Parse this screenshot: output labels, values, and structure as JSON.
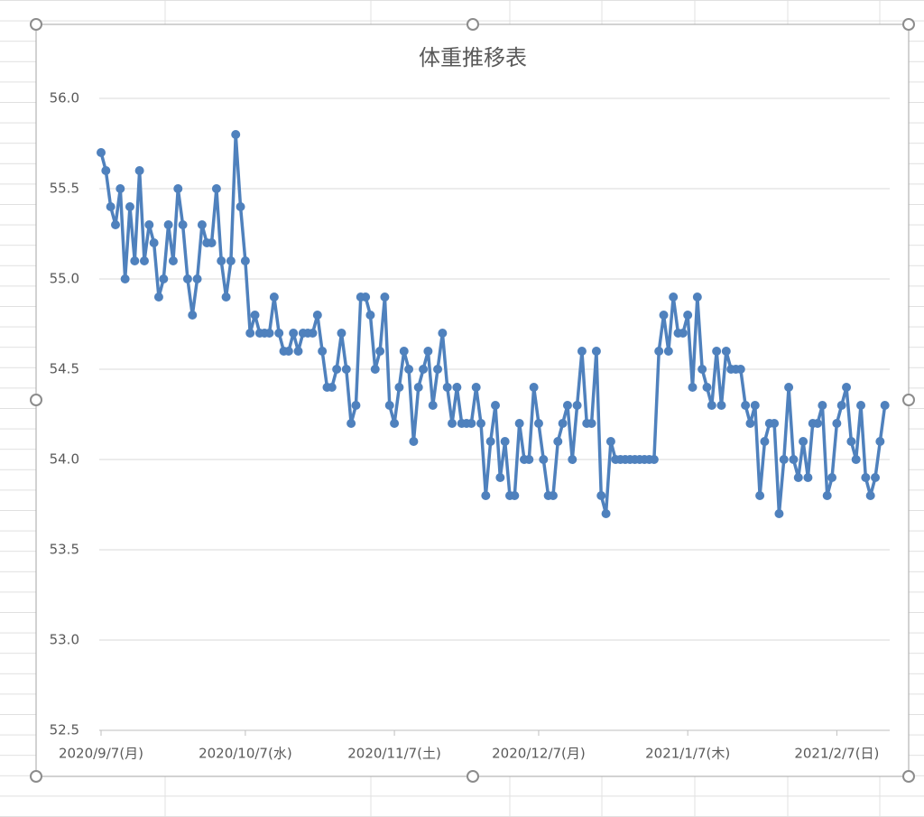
{
  "chart_data": {
    "type": "line",
    "title": "体重推移表",
    "x": [
      "2020/9/7",
      "2020/9/8",
      "2020/9/9",
      "2020/9/10",
      "2020/9/11",
      "2020/9/12",
      "2020/9/13",
      "2020/9/14",
      "2020/9/15",
      "2020/9/16",
      "2020/9/17",
      "2020/9/18",
      "2020/9/19",
      "2020/9/20",
      "2020/9/21",
      "2020/9/22",
      "2020/9/23",
      "2020/9/24",
      "2020/9/25",
      "2020/9/26",
      "2020/9/27",
      "2020/9/28",
      "2020/9/29",
      "2020/9/30",
      "2020/10/1",
      "2020/10/2",
      "2020/10/3",
      "2020/10/4",
      "2020/10/5",
      "2020/10/6",
      "2020/10/7",
      "2020/10/8",
      "2020/10/9",
      "2020/10/10",
      "2020/10/11",
      "2020/10/12",
      "2020/10/13",
      "2020/10/14",
      "2020/10/15",
      "2020/10/16",
      "2020/10/17",
      "2020/10/18",
      "2020/10/19",
      "2020/10/20",
      "2020/10/21",
      "2020/10/22",
      "2020/10/23",
      "2020/10/24",
      "2020/10/25",
      "2020/10/26",
      "2020/10/27",
      "2020/10/28",
      "2020/10/29",
      "2020/10/30",
      "2020/10/31",
      "2020/11/1",
      "2020/11/2",
      "2020/11/3",
      "2020/11/4",
      "2020/11/5",
      "2020/11/6",
      "2020/11/7",
      "2020/11/8",
      "2020/11/9",
      "2020/11/10",
      "2020/11/11",
      "2020/11/12",
      "2020/11/13",
      "2020/11/14",
      "2020/11/15",
      "2020/11/16",
      "2020/11/17",
      "2020/11/18",
      "2020/11/19",
      "2020/11/20",
      "2020/11/21",
      "2020/11/22",
      "2020/11/23",
      "2020/11/24",
      "2020/11/25",
      "2020/11/26",
      "2020/11/27",
      "2020/11/28",
      "2020/11/29",
      "2020/11/30",
      "2020/12/1",
      "2020/12/2",
      "2020/12/3",
      "2020/12/4",
      "2020/12/5",
      "2020/12/6",
      "2020/12/7",
      "2020/12/8",
      "2020/12/9",
      "2020/12/10",
      "2020/12/11",
      "2020/12/12",
      "2020/12/13",
      "2020/12/14",
      "2020/12/15",
      "2020/12/16",
      "2020/12/17",
      "2020/12/18",
      "2020/12/19",
      "2020/12/20",
      "2020/12/21",
      "2020/12/22",
      "2020/12/23",
      "2020/12/24",
      "2020/12/25",
      "2020/12/26",
      "2020/12/27",
      "2020/12/28",
      "2020/12/29",
      "2020/12/30",
      "2020/12/31",
      "2021/1/1",
      "2021/1/2",
      "2021/1/3",
      "2021/1/4",
      "2021/1/5",
      "2021/1/6",
      "2021/1/7",
      "2021/1/8",
      "2021/1/9",
      "2021/1/10",
      "2021/1/11",
      "2021/1/12",
      "2021/1/13",
      "2021/1/14",
      "2021/1/15",
      "2021/1/16",
      "2021/1/17",
      "2021/1/18",
      "2021/1/19",
      "2021/1/20",
      "2021/1/21",
      "2021/1/22",
      "2021/1/23",
      "2021/1/24",
      "2021/1/25",
      "2021/1/26",
      "2021/1/27",
      "2021/1/28",
      "2021/1/29",
      "2021/1/30",
      "2021/1/31",
      "2021/2/1",
      "2021/2/2",
      "2021/2/3",
      "2021/2/4",
      "2021/2/5",
      "2021/2/6",
      "2021/2/7",
      "2021/2/8",
      "2021/2/9",
      "2021/2/10",
      "2021/2/11",
      "2021/2/12",
      "2021/2/13",
      "2021/2/14",
      "2021/2/15",
      "2021/2/16",
      "2021/2/17"
    ],
    "values": [
      55.7,
      55.6,
      55.4,
      55.3,
      55.5,
      55.0,
      55.4,
      55.1,
      55.6,
      55.1,
      55.3,
      55.2,
      54.9,
      55.0,
      55.3,
      55.1,
      55.5,
      55.3,
      55.0,
      54.8,
      55.0,
      55.3,
      55.2,
      55.2,
      55.5,
      55.1,
      54.9,
      55.1,
      55.8,
      55.4,
      55.1,
      54.7,
      54.8,
      54.7,
      54.7,
      54.7,
      54.9,
      54.7,
      54.6,
      54.6,
      54.7,
      54.6,
      54.7,
      54.7,
      54.7,
      54.8,
      54.6,
      54.4,
      54.4,
      54.5,
      54.7,
      54.5,
      54.2,
      54.3,
      54.9,
      54.9,
      54.8,
      54.5,
      54.6,
      54.9,
      54.3,
      54.2,
      54.4,
      54.6,
      54.5,
      54.1,
      54.4,
      54.5,
      54.6,
      54.3,
      54.5,
      54.7,
      54.4,
      54.2,
      54.4,
      54.2,
      54.2,
      54.2,
      54.4,
      54.2,
      53.8,
      54.1,
      54.3,
      53.9,
      54.1,
      53.8,
      53.8,
      54.2,
      54.0,
      54.0,
      54.4,
      54.2,
      54.0,
      53.8,
      53.8,
      54.1,
      54.2,
      54.3,
      54.0,
      54.3,
      54.6,
      54.2,
      54.2,
      54.6,
      53.8,
      53.7,
      54.1,
      54.0,
      54.0,
      54.0,
      54.0,
      54.0,
      54.0,
      54.0,
      54.0,
      54.0,
      54.6,
      54.8,
      54.6,
      54.9,
      54.7,
      54.7,
      54.8,
      54.4,
      54.9,
      54.5,
      54.4,
      54.3,
      54.6,
      54.3,
      54.6,
      54.5,
      54.5,
      54.5,
      54.3,
      54.2,
      54.3,
      53.8,
      54.1,
      54.2,
      54.2,
      53.7,
      54.0,
      54.4,
      54.0,
      53.9,
      54.1,
      53.9,
      54.2,
      54.2,
      54.3,
      53.8,
      53.9,
      54.2,
      54.3,
      54.4,
      54.1,
      54.0,
      54.3,
      53.9,
      53.8,
      53.9,
      54.1,
      54.3
    ],
    "color": "#4f81bd",
    "xlim": [
      "2020/9/7",
      "2021/2/18"
    ],
    "xticks": [
      {
        "value": "2020/9/7",
        "label": "2020/9/7(月)"
      },
      {
        "value": "2020/10/7",
        "label": "2020/10/7(水)"
      },
      {
        "value": "2020/11/7",
        "label": "2020/11/7(土)"
      },
      {
        "value": "2020/12/7",
        "label": "2020/12/7(月)"
      },
      {
        "value": "2021/1/7",
        "label": "2021/1/7(木)"
      },
      {
        "value": "2021/2/7",
        "label": "2021/2/7(日)"
      }
    ],
    "ylim": [
      52.5,
      56
    ],
    "yticks": [
      {
        "value": 52.5,
        "label": "52.5"
      },
      {
        "value": 53,
        "label": "53.0"
      },
      {
        "value": 53.5,
        "label": "53.5"
      },
      {
        "value": 54,
        "label": "54.0"
      },
      {
        "value": 54.5,
        "label": "54.5"
      },
      {
        "value": 55,
        "label": "55.0"
      },
      {
        "value": 55.5,
        "label": "55.5"
      },
      {
        "value": 56,
        "label": "56.0"
      }
    ],
    "grid": true
  }
}
